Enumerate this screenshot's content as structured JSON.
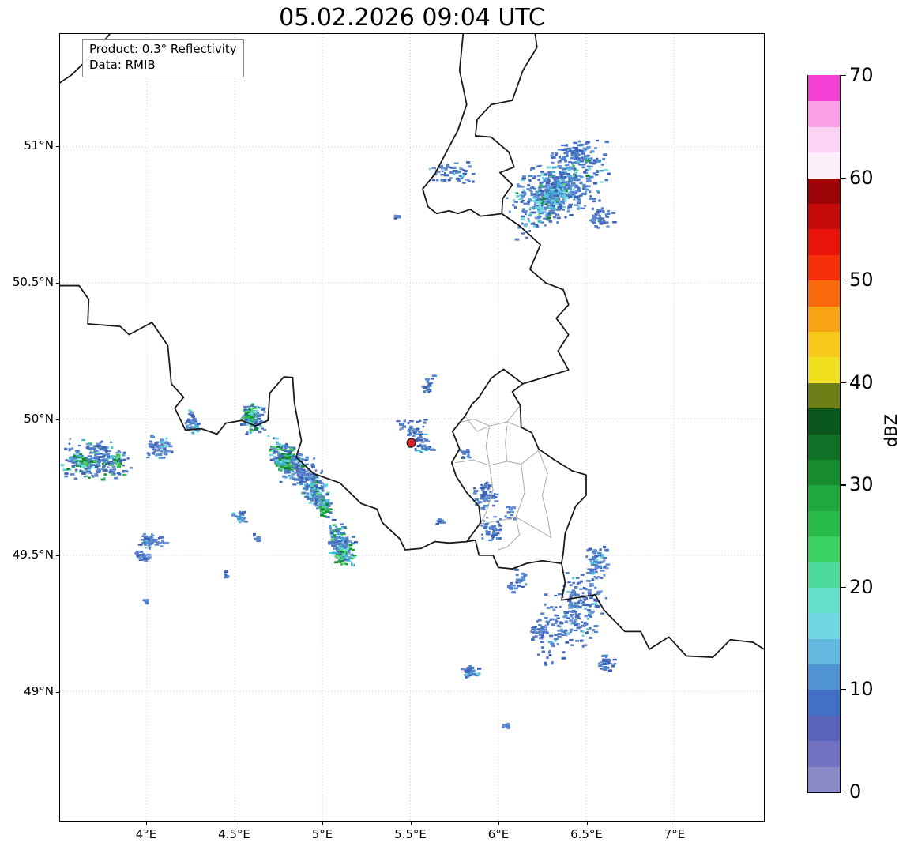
{
  "title": "05.02.2026 09:04 UTC",
  "annotation": {
    "line1": "Product: 0.3° Reflectivity",
    "line2": "Data: RMIB"
  },
  "axes": {
    "lon_min": 3.507,
    "lon_max": 7.511,
    "lat_min": 48.525,
    "lat_max": 51.414,
    "x_ticks": [
      {
        "value": 4.0,
        "label": "4°E"
      },
      {
        "value": 4.5,
        "label": "4.5°E"
      },
      {
        "value": 5.0,
        "label": "5°E"
      },
      {
        "value": 5.5,
        "label": "5.5°E"
      },
      {
        "value": 6.0,
        "label": "6°E"
      },
      {
        "value": 6.5,
        "label": "6.5°E"
      },
      {
        "value": 7.0,
        "label": "7°E"
      }
    ],
    "y_ticks": [
      {
        "value": 51.0,
        "label": "51°N"
      },
      {
        "value": 50.5,
        "label": "50.5°N"
      },
      {
        "value": 50.0,
        "label": "50°N"
      },
      {
        "value": 49.5,
        "label": "49.5°N"
      },
      {
        "value": 49.0,
        "label": "49°N"
      }
    ]
  },
  "colorbar": {
    "label": "dBZ",
    "min": 0,
    "max": 70,
    "ticks": [
      0,
      10,
      20,
      30,
      40,
      50,
      60,
      70
    ],
    "colors": [
      "#8a8ac8",
      "#7272c2",
      "#5a64bb",
      "#4170c6",
      "#4f93d2",
      "#63b8e0",
      "#70d8e2",
      "#63dfca",
      "#4eda9a",
      "#39d162",
      "#2abc48",
      "#1fa83b",
      "#178c2f",
      "#0f7125",
      "#0a581d",
      "#6d7f17",
      "#f0e020",
      "#f6c81a",
      "#f8a313",
      "#fa6a0c",
      "#f63008",
      "#e81309",
      "#c40b08",
      "#9c0407",
      "#fdf0fb",
      "#fdd3f4",
      "#fba0e8",
      "#f540d6"
    ]
  },
  "radar_site": {
    "lon": 5.505,
    "lat": 49.913,
    "color": "#d62728"
  },
  "echo_palette": {
    "blue": [
      "#4f74c4",
      "#416cc0",
      "#4a87c9",
      "#6a94d4",
      "#3b5fb4",
      "#5c83cc"
    ],
    "cyan": [
      "#4ec3da",
      "#65d5dc",
      "#3fb0d4",
      "#79dede"
    ],
    "green": [
      "#33bf4f",
      "#18a233",
      "#55d36a",
      "#0f8526"
    ]
  },
  "map": {
    "border_color": "#1a1a1a",
    "admin_color": "#b0b0b0",
    "grid_color": "#c9c9c9",
    "borders": [
      [
        [
          3.507,
          51.235
        ],
        [
          3.575,
          51.265
        ],
        [
          3.63,
          51.3
        ],
        [
          3.72,
          51.36
        ],
        [
          3.79,
          51.414
        ]
      ],
      [
        [
          5.8,
          51.414
        ],
        [
          5.78,
          51.28
        ],
        [
          5.82,
          51.155
        ],
        [
          5.77,
          51.06
        ],
        [
          5.7,
          50.975
        ],
        [
          5.64,
          50.9
        ],
        [
          5.57,
          50.845
        ],
        [
          5.6,
          50.78
        ],
        [
          5.65,
          50.755
        ],
        [
          5.72,
          50.765
        ],
        [
          5.77,
          50.755
        ],
        [
          5.84,
          50.77
        ],
        [
          5.9,
          50.745
        ],
        [
          6.02,
          50.754
        ]
      ],
      [
        [
          6.02,
          50.754
        ],
        [
          6.025,
          50.81
        ],
        [
          6.08,
          50.86
        ],
        [
          6.01,
          50.905
        ],
        [
          6.09,
          50.925
        ],
        [
          6.06,
          50.98
        ],
        [
          5.96,
          51.035
        ],
        [
          5.87,
          51.04
        ],
        [
          5.88,
          51.1
        ],
        [
          5.96,
          51.155
        ],
        [
          6.08,
          51.17
        ],
        [
          6.14,
          51.28
        ],
        [
          6.22,
          51.365
        ],
        [
          6.21,
          51.414
        ]
      ],
      [
        [
          6.02,
          50.754
        ],
        [
          6.12,
          50.71
        ],
        [
          6.24,
          50.64
        ],
        [
          6.18,
          50.55
        ],
        [
          6.27,
          50.5
        ],
        [
          6.37,
          50.475
        ],
        [
          6.4,
          50.42
        ],
        [
          6.33,
          50.37
        ],
        [
          6.4,
          50.31
        ],
        [
          6.34,
          50.25
        ],
        [
          6.4,
          50.18
        ],
        [
          6.32,
          50.165
        ],
        [
          6.14,
          50.13
        ]
      ],
      [
        [
          6.14,
          50.13
        ],
        [
          6.03,
          50.183
        ],
        [
          5.96,
          50.15
        ],
        [
          5.89,
          50.08
        ],
        [
          5.85,
          50.055
        ],
        [
          5.81,
          50.01
        ],
        [
          5.74,
          49.955
        ],
        [
          5.78,
          49.89
        ],
        [
          5.735,
          49.84
        ],
        [
          5.76,
          49.79
        ],
        [
          5.82,
          49.73
        ],
        [
          5.89,
          49.68
        ],
        [
          5.9,
          49.62
        ],
        [
          5.82,
          49.55
        ],
        [
          5.87,
          49.555
        ],
        [
          5.89,
          49.5
        ],
        [
          5.97,
          49.5
        ],
        [
          6.0,
          49.455
        ],
        [
          6.08,
          49.45
        ],
        [
          6.16,
          49.47
        ],
        [
          6.25,
          49.48
        ],
        [
          6.36,
          49.47
        ],
        [
          6.37,
          49.51
        ],
        [
          6.38,
          49.58
        ],
        [
          6.44,
          49.68
        ],
        [
          6.5,
          49.72
        ],
        [
          6.5,
          49.795
        ],
        [
          6.42,
          49.81
        ],
        [
          6.32,
          49.85
        ],
        [
          6.23,
          49.89
        ],
        [
          6.19,
          49.95
        ],
        [
          6.13,
          49.97
        ],
        [
          6.125,
          50.05
        ],
        [
          6.08,
          50.1
        ],
        [
          6.14,
          50.13
        ]
      ],
      [
        [
          3.507,
          50.49
        ],
        [
          3.615,
          50.49
        ],
        [
          3.67,
          50.44
        ],
        [
          3.665,
          50.35
        ],
        [
          3.76,
          50.345
        ],
        [
          3.85,
          50.34
        ],
        [
          3.9,
          50.31
        ],
        [
          4.03,
          50.355
        ],
        [
          4.12,
          50.27
        ],
        [
          4.14,
          50.13
        ],
        [
          4.21,
          50.08
        ],
        [
          4.16,
          50.04
        ],
        [
          4.22,
          49.96
        ],
        [
          4.31,
          49.965
        ],
        [
          4.4,
          49.945
        ],
        [
          4.45,
          49.985
        ],
        [
          4.54,
          49.995
        ],
        [
          4.62,
          49.975
        ],
        [
          4.69,
          49.995
        ],
        [
          4.7,
          50.095
        ],
        [
          4.78,
          50.155
        ],
        [
          4.83,
          50.153
        ],
        [
          4.84,
          50.06
        ],
        [
          4.88,
          49.92
        ],
        [
          4.85,
          49.86
        ],
        [
          4.95,
          49.8
        ],
        [
          5.1,
          49.765
        ],
        [
          5.22,
          49.69
        ],
        [
          5.31,
          49.67
        ],
        [
          5.34,
          49.62
        ],
        [
          5.44,
          49.56
        ],
        [
          5.47,
          49.52
        ],
        [
          5.56,
          49.525
        ],
        [
          5.64,
          49.55
        ],
        [
          5.72,
          49.545
        ],
        [
          5.82,
          49.55
        ]
      ],
      [
        [
          6.36,
          49.47
        ],
        [
          6.38,
          49.4
        ],
        [
          6.36,
          49.335
        ],
        [
          6.55,
          49.355
        ],
        [
          6.6,
          49.3
        ],
        [
          6.72,
          49.22
        ],
        [
          6.81,
          49.22
        ],
        [
          6.86,
          49.155
        ],
        [
          6.97,
          49.2
        ],
        [
          7.07,
          49.13
        ],
        [
          7.22,
          49.125
        ],
        [
          7.32,
          49.19
        ],
        [
          7.45,
          49.18
        ],
        [
          7.511,
          49.155
        ]
      ]
    ],
    "admin_borders": [
      [
        [
          5.755,
          49.84
        ],
        [
          5.86,
          49.85
        ],
        [
          5.95,
          49.83
        ],
        [
          6.05,
          49.845
        ],
        [
          6.13,
          49.835
        ],
        [
          6.23,
          49.885
        ]
      ],
      [
        [
          5.76,
          49.985
        ],
        [
          5.86,
          50.0
        ],
        [
          5.95,
          49.975
        ],
        [
          6.05,
          49.99
        ],
        [
          6.125,
          49.97
        ]
      ],
      [
        [
          5.95,
          49.83
        ],
        [
          5.97,
          49.74
        ],
        [
          5.93,
          49.655
        ],
        [
          5.9,
          49.62
        ]
      ],
      [
        [
          6.13,
          49.835
        ],
        [
          6.15,
          49.73
        ],
        [
          6.1,
          49.64
        ],
        [
          6.12,
          49.575
        ]
      ],
      [
        [
          5.89,
          49.615
        ],
        [
          5.99,
          49.625
        ],
        [
          6.1,
          49.64
        ],
        [
          6.21,
          49.6
        ],
        [
          6.3,
          49.565
        ]
      ],
      [
        [
          6.05,
          49.845
        ],
        [
          6.04,
          49.91
        ],
        [
          6.05,
          49.975
        ]
      ],
      [
        [
          5.95,
          49.975
        ],
        [
          5.93,
          49.9
        ],
        [
          5.95,
          49.83
        ]
      ],
      [
        [
          6.23,
          49.885
        ],
        [
          6.28,
          49.8
        ],
        [
          6.25,
          49.72
        ],
        [
          6.28,
          49.64
        ],
        [
          6.3,
          49.565
        ]
      ],
      [
        [
          6.12,
          49.575
        ],
        [
          6.05,
          49.53
        ],
        [
          6.0,
          49.52
        ]
      ],
      [
        [
          5.81,
          50.01
        ],
        [
          5.88,
          49.955
        ],
        [
          5.95,
          49.975
        ]
      ],
      [
        [
          6.125,
          50.05
        ],
        [
          6.05,
          49.99
        ]
      ]
    ]
  },
  "chart_data": {
    "type": "heatmap",
    "title": "05.02.2026 09:04 UTC",
    "product": "0.3° Reflectivity",
    "source": "RMIB",
    "unit": "dBZ",
    "value_range": [
      0,
      70
    ],
    "lon_range": [
      3.51,
      7.51
    ],
    "lat_range": [
      48.53,
      51.41
    ],
    "intensity_key": {
      "b": "blue bins ~0-10 dBZ",
      "c": "cyan bins ~12-18 dBZ",
      "g": "green bins ~20-30 dBZ"
    },
    "echo_clusters": [
      {
        "lon": 6.33,
        "lat": 50.85,
        "w": 0.6,
        "h": 0.28,
        "n": 520,
        "t": 0.3,
        "b": 0.85,
        "c": 0.12,
        "g": 0.03
      },
      {
        "lon": 6.3,
        "lat": 50.815,
        "w": 0.26,
        "h": 0.1,
        "n": 140,
        "t": 0.3,
        "b": 0.35,
        "c": 0.55,
        "g": 0.1
      },
      {
        "lon": 5.73,
        "lat": 50.91,
        "w": 0.28,
        "h": 0.1,
        "n": 55,
        "b": 0.95,
        "c": 0.05
      },
      {
        "lon": 6.42,
        "lat": 50.99,
        "w": 0.28,
        "h": 0.1,
        "n": 60,
        "t": 0.2,
        "b": 1
      },
      {
        "lon": 6.56,
        "lat": 50.74,
        "w": 0.18,
        "h": 0.09,
        "n": 45,
        "b": 1
      },
      {
        "lon": 3.7,
        "lat": 49.855,
        "w": 0.42,
        "h": 0.16,
        "n": 240,
        "b": 0.78,
        "c": 0.12,
        "g": 0.1
      },
      {
        "lon": 3.62,
        "lat": 49.845,
        "w": 0.11,
        "h": 0.06,
        "n": 45,
        "b": 0.15,
        "c": 0.25,
        "g": 0.6
      },
      {
        "lon": 3.82,
        "lat": 49.85,
        "w": 0.08,
        "h": 0.05,
        "n": 30,
        "b": 0.2,
        "c": 0.2,
        "g": 0.6
      },
      {
        "lon": 4.06,
        "lat": 49.9,
        "w": 0.16,
        "h": 0.09,
        "n": 55,
        "b": 0.9,
        "c": 0.1
      },
      {
        "lon": 4.25,
        "lat": 50.0,
        "w": 0.09,
        "h": 0.11,
        "n": 40,
        "b": 0.7,
        "c": 0.3
      },
      {
        "lon": 4.59,
        "lat": 50.005,
        "w": 0.17,
        "h": 0.12,
        "n": 110,
        "b": 0.55,
        "c": 0.25,
        "g": 0.2
      },
      {
        "lon": 4.575,
        "lat": 50.02,
        "w": 0.07,
        "h": 0.05,
        "n": 35,
        "b": 0.1,
        "c": 0.3,
        "g": 0.6
      },
      {
        "lon": 4.78,
        "lat": 49.86,
        "w": 0.22,
        "h": 0.13,
        "n": 190,
        "t": -0.4,
        "b": 0.6,
        "c": 0.22,
        "g": 0.18
      },
      {
        "lon": 4.765,
        "lat": 49.85,
        "w": 0.1,
        "h": 0.06,
        "n": 55,
        "b": 0.1,
        "c": 0.3,
        "g": 0.6
      },
      {
        "lon": 4.95,
        "lat": 49.735,
        "w": 0.2,
        "h": 0.13,
        "n": 170,
        "t": -0.5,
        "b": 0.65,
        "c": 0.2,
        "g": 0.15
      },
      {
        "lon": 5.0,
        "lat": 49.675,
        "w": 0.08,
        "h": 0.06,
        "n": 45,
        "b": 0.15,
        "c": 0.25,
        "g": 0.6
      },
      {
        "lon": 5.1,
        "lat": 49.545,
        "w": 0.17,
        "h": 0.15,
        "n": 170,
        "t": -0.5,
        "b": 0.6,
        "c": 0.25,
        "g": 0.15
      },
      {
        "lon": 5.105,
        "lat": 49.5,
        "w": 0.09,
        "h": 0.07,
        "n": 55,
        "b": 0.15,
        "c": 0.35,
        "g": 0.5
      },
      {
        "lon": 4.87,
        "lat": 49.8,
        "w": 0.26,
        "h": 0.16,
        "n": 70,
        "b": 1
      },
      {
        "lon": 4.02,
        "lat": 49.555,
        "w": 0.17,
        "h": 0.06,
        "n": 50,
        "b": 0.95,
        "c": 0.05
      },
      {
        "lon": 3.97,
        "lat": 49.5,
        "w": 0.1,
        "h": 0.05,
        "n": 25,
        "b": 1
      },
      {
        "lon": 4.52,
        "lat": 49.645,
        "w": 0.09,
        "h": 0.05,
        "n": 28,
        "b": 0.9,
        "c": 0.1
      },
      {
        "lon": 4.62,
        "lat": 49.565,
        "w": 0.06,
        "h": 0.04,
        "n": 14,
        "b": 1
      },
      {
        "lon": 3.99,
        "lat": 49.335,
        "w": 0.04,
        "h": 0.025,
        "n": 7,
        "b": 1
      },
      {
        "lon": 4.44,
        "lat": 49.43,
        "w": 0.05,
        "h": 0.03,
        "n": 8,
        "b": 1
      },
      {
        "lon": 5.53,
        "lat": 49.955,
        "w": 0.16,
        "h": 0.12,
        "n": 45,
        "b": 0.9,
        "c": 0.1
      },
      {
        "lon": 5.6,
        "lat": 50.13,
        "w": 0.09,
        "h": 0.07,
        "n": 20,
        "b": 1
      },
      {
        "lon": 5.57,
        "lat": 49.895,
        "w": 0.13,
        "h": 0.035,
        "n": 22,
        "b": 0.85,
        "c": 0.15
      },
      {
        "lon": 5.44,
        "lat": 49.985,
        "w": 0.05,
        "h": 0.04,
        "n": 8,
        "b": 1
      },
      {
        "lon": 5.92,
        "lat": 49.72,
        "w": 0.15,
        "h": 0.11,
        "n": 55,
        "b": 1
      },
      {
        "lon": 5.955,
        "lat": 49.6,
        "w": 0.12,
        "h": 0.1,
        "n": 45,
        "b": 1
      },
      {
        "lon": 6.06,
        "lat": 49.66,
        "w": 0.07,
        "h": 0.05,
        "n": 15,
        "b": 1
      },
      {
        "lon": 6.42,
        "lat": 49.295,
        "w": 0.42,
        "h": 0.33,
        "n": 240,
        "t": 0.5,
        "b": 0.92,
        "c": 0.08
      },
      {
        "lon": 6.55,
        "lat": 49.48,
        "w": 0.14,
        "h": 0.12,
        "n": 60,
        "b": 0.9,
        "c": 0.1
      },
      {
        "lon": 6.6,
        "lat": 49.11,
        "w": 0.12,
        "h": 0.08,
        "n": 35,
        "b": 1
      },
      {
        "lon": 6.23,
        "lat": 49.23,
        "w": 0.12,
        "h": 0.09,
        "n": 35,
        "b": 1
      },
      {
        "lon": 6.07,
        "lat": 49.385,
        "w": 0.07,
        "h": 0.05,
        "n": 12,
        "b": 1
      },
      {
        "lon": 6.13,
        "lat": 49.42,
        "w": 0.1,
        "h": 0.08,
        "n": 25,
        "b": 1
      },
      {
        "lon": 5.84,
        "lat": 49.075,
        "w": 0.12,
        "h": 0.055,
        "n": 40,
        "b": 0.8,
        "c": 0.2
      },
      {
        "lon": 6.04,
        "lat": 48.875,
        "w": 0.06,
        "h": 0.03,
        "n": 9,
        "b": 1
      },
      {
        "lon": 5.41,
        "lat": 50.745,
        "w": 0.03,
        "h": 0.02,
        "n": 4,
        "b": 1
      },
      {
        "lon": 5.66,
        "lat": 49.63,
        "w": 0.05,
        "h": 0.03,
        "n": 8,
        "b": 1
      },
      {
        "lon": 5.8,
        "lat": 49.87,
        "w": 0.08,
        "h": 0.06,
        "n": 12,
        "b": 1
      }
    ]
  }
}
